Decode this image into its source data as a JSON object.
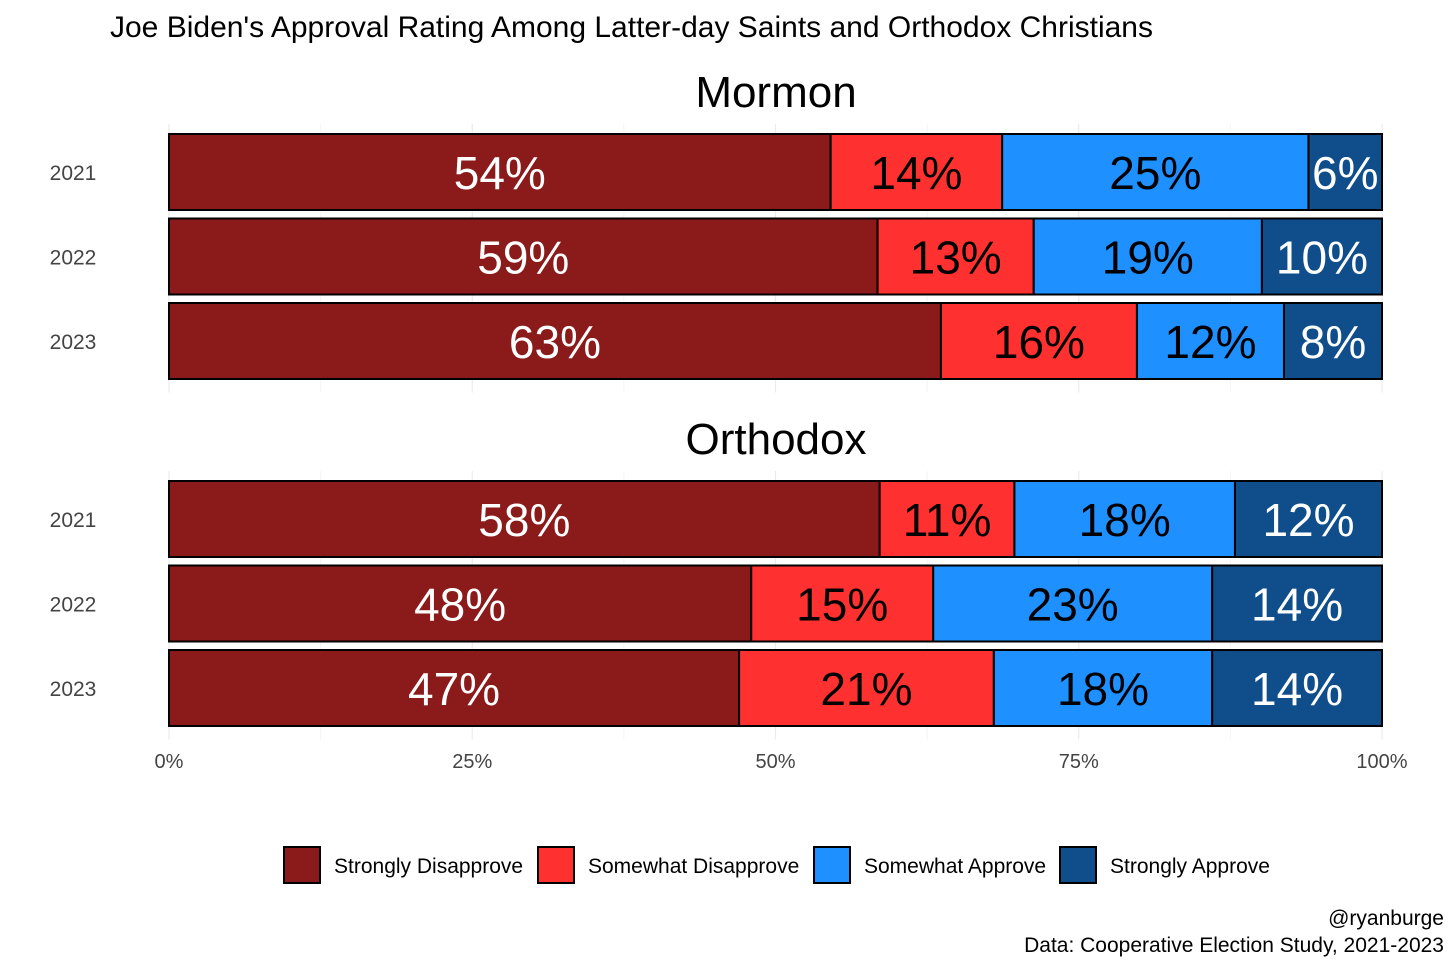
{
  "chart_data": {
    "type": "bar",
    "orientation": "horizontal-stacked-100",
    "title": "Joe Biden's Approval Rating Among Latter-day Saints and Orthodox Christians",
    "categories": [
      "Strongly Disapprove",
      "Somewhat Disapprove",
      "Somewhat Approve",
      "Strongly Approve"
    ],
    "colors": [
      "#8B1A1A",
      "#FF3030",
      "#1E90FF",
      "#104E8B"
    ],
    "label_colors": [
      "#ffffff",
      "#000000",
      "#000000",
      "#ffffff"
    ],
    "xlim": [
      0,
      100
    ],
    "x_ticks": [
      "0%",
      "25%",
      "50%",
      "75%",
      "100%"
    ],
    "x_tick_values": [
      0,
      25,
      50,
      75,
      100
    ],
    "legend_position": "bottom",
    "facets": [
      {
        "name": "Mormon",
        "rows": [
          {
            "year": "2021",
            "values": [
              54,
              14,
              25,
              6
            ]
          },
          {
            "year": "2022",
            "values": [
              59,
              13,
              19,
              10
            ]
          },
          {
            "year": "2023",
            "values": [
              63,
              16,
              12,
              8
            ]
          }
        ]
      },
      {
        "name": "Orthodox",
        "rows": [
          {
            "year": "2021",
            "values": [
              58,
              11,
              18,
              12
            ]
          },
          {
            "year": "2022",
            "values": [
              48,
              15,
              23,
              14
            ]
          },
          {
            "year": "2023",
            "values": [
              47,
              21,
              18,
              14
            ]
          }
        ]
      }
    ],
    "caption": [
      "@ryanburge",
      "Data: Cooperative Election Study, 2021-2023"
    ]
  }
}
